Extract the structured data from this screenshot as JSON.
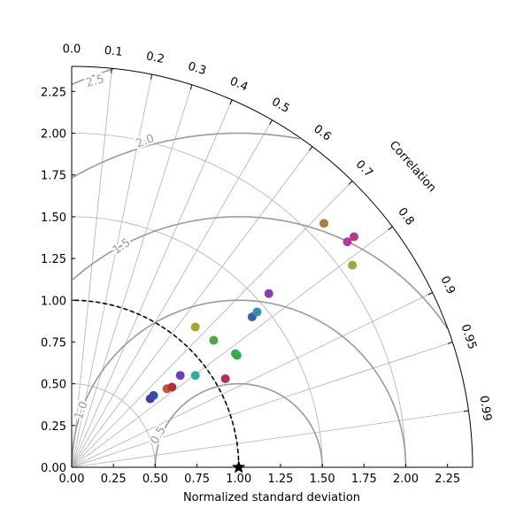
{
  "chart_data": {
    "type": "scatter",
    "subtype": "taylor-diagram",
    "title": "",
    "xlabel": "Normalized standard deviation",
    "correlation_label": "Correlation",
    "std_max": 2.4,
    "std_ticks": [
      "0.00",
      "0.25",
      "0.50",
      "0.75",
      "1.00",
      "1.25",
      "1.50",
      "1.75",
      "2.00",
      "2.25"
    ],
    "correlation_ticks": [
      "0.0",
      "0.1",
      "0.2",
      "0.3",
      "0.4",
      "0.5",
      "0.6",
      "0.7",
      "0.8",
      "0.9",
      "0.95",
      "0.99"
    ],
    "std_grid_arcs": [
      0.5,
      1.0,
      1.5,
      2.0
    ],
    "rms_contours": [
      "0.5",
      "1.0",
      "1.5",
      "2.0",
      "2.5"
    ],
    "reference": {
      "std": 1.0,
      "correlation": 1.0,
      "marker": "star"
    },
    "grid": true,
    "points": [
      {
        "x": 0.47,
        "y": 0.41,
        "color": "#3b3fa0"
      },
      {
        "x": 0.49,
        "y": 0.43,
        "color": "#3b4aa8"
      },
      {
        "x": 0.57,
        "y": 0.47,
        "color": "#b85a3c"
      },
      {
        "x": 0.6,
        "y": 0.48,
        "color": "#b03038"
      },
      {
        "x": 0.65,
        "y": 0.55,
        "color": "#6a3fb0"
      },
      {
        "x": 0.74,
        "y": 0.55,
        "color": "#3aa89c"
      },
      {
        "x": 0.74,
        "y": 0.84,
        "color": "#a8a43a"
      },
      {
        "x": 0.85,
        "y": 0.76,
        "color": "#4aa84a"
      },
      {
        "x": 0.92,
        "y": 0.53,
        "color": "#b03060"
      },
      {
        "x": 0.98,
        "y": 0.68,
        "color": "#3aa85a"
      },
      {
        "x": 0.99,
        "y": 0.67,
        "color": "#3aa84a"
      },
      {
        "x": 1.08,
        "y": 0.9,
        "color": "#3a60a8"
      },
      {
        "x": 1.11,
        "y": 0.93,
        "color": "#3a8ca8"
      },
      {
        "x": 1.18,
        "y": 1.04,
        "color": "#8c3ab0"
      },
      {
        "x": 1.51,
        "y": 1.46,
        "color": "#a8803a"
      },
      {
        "x": 1.65,
        "y": 1.35,
        "color": "#b03a9c"
      },
      {
        "x": 1.69,
        "y": 1.38,
        "color": "#b03a8c"
      },
      {
        "x": 1.68,
        "y": 1.21,
        "color": "#8cb03a"
      }
    ]
  }
}
